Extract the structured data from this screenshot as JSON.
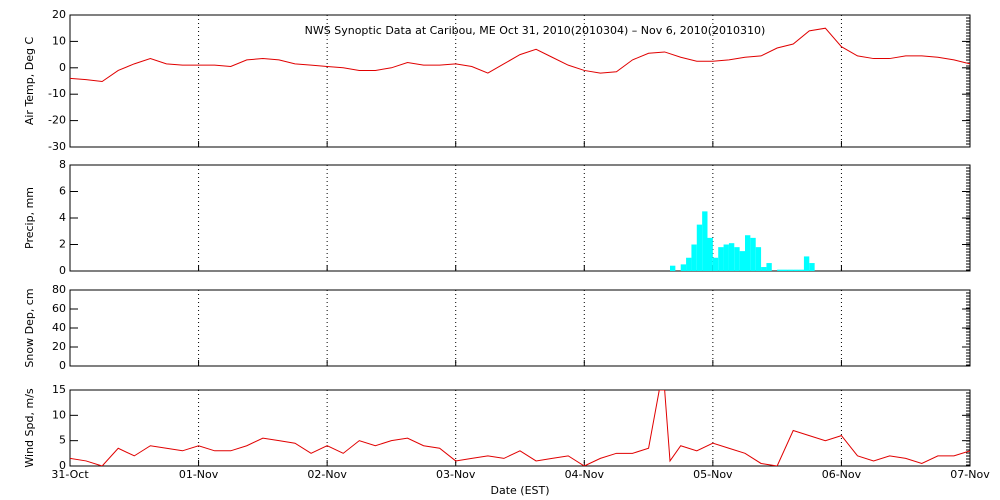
{
  "chart_data": [
    {
      "type": "line",
      "title": "NWS Synoptic Data at Caribou, ME   Oct 31, 2010(2010304) – Nov  6, 2010(2010310)",
      "ylabel": "Air Temp, Deg C",
      "color": "#e00000",
      "grid": true,
      "xlim": [
        0,
        168
      ],
      "xticks": [
        0,
        24,
        48,
        72,
        96,
        120,
        144,
        168
      ],
      "ylim": [
        -30,
        20
      ],
      "yticks": [
        -30,
        -20,
        -10,
        0,
        10,
        20
      ],
      "x": [
        0,
        3,
        6,
        9,
        12,
        15,
        18,
        21,
        24,
        27,
        30,
        33,
        36,
        39,
        42,
        45,
        48,
        51,
        54,
        57,
        60,
        63,
        66,
        69,
        72,
        75,
        78,
        81,
        84,
        87,
        90,
        93,
        96,
        99,
        102,
        105,
        108,
        111,
        114,
        117,
        120,
        123,
        126,
        129,
        132,
        135,
        138,
        141,
        144,
        147,
        150,
        153,
        156,
        159,
        162,
        165,
        168
      ],
      "values": [
        -4,
        -4.5,
        -5.2,
        -1,
        1.5,
        3.5,
        1.5,
        1,
        1,
        1,
        0.5,
        3,
        3.5,
        3,
        1.5,
        1,
        0.5,
        0,
        -1,
        -1,
        0,
        2,
        1,
        1,
        1.5,
        0.5,
        -2,
        1.5,
        5,
        7,
        4,
        1,
        -1,
        -2,
        -1.5,
        3,
        5.5,
        6,
        4,
        2.5,
        2.5,
        3,
        4,
        4.5,
        7.5,
        9,
        14,
        15,
        8,
        4.5,
        3.5,
        3.5,
        4.5,
        4.5,
        4,
        3,
        1.5
      ]
    },
    {
      "type": "bar",
      "ylabel": "Precip, mm",
      "color": "#00ffff",
      "grid": true,
      "xlim": [
        0,
        168
      ],
      "xticks": [
        0,
        24,
        48,
        72,
        96,
        120,
        144,
        168
      ],
      "ylim": [
        0,
        8
      ],
      "yticks": [
        0,
        2,
        4,
        6,
        8
      ],
      "x": [
        112,
        113,
        114,
        115,
        116,
        117,
        118,
        119,
        120,
        121,
        122,
        123,
        124,
        125,
        126,
        127,
        128,
        129,
        130,
        131,
        132,
        133,
        134,
        135,
        136,
        137,
        138
      ],
      "values": [
        0.4,
        0,
        0.5,
        1,
        2,
        3.5,
        4.5,
        2.5,
        1,
        1.8,
        2,
        2.1,
        1.8,
        1.5,
        2.7,
        2.5,
        1.8,
        0.3,
        0.6,
        0,
        0.1,
        0.1,
        0.1,
        0.1,
        0.1,
        1.1,
        0.6
      ]
    },
    {
      "type": "line",
      "ylabel": "Snow Dep, cm",
      "color": "#e00000",
      "grid": true,
      "xlim": [
        0,
        168
      ],
      "xticks": [
        0,
        24,
        48,
        72,
        96,
        120,
        144,
        168
      ],
      "ylim": [
        0,
        80
      ],
      "yticks": [
        0,
        20,
        40,
        60,
        80
      ]
    },
    {
      "type": "line",
      "ylabel": "Wind Spd, m/s",
      "xlabel": "Date (EST)",
      "color": "#e00000",
      "grid": true,
      "xlim": [
        0,
        168
      ],
      "xticks": [
        {
          "value": 0,
          "label": "31-Oct"
        },
        {
          "value": 24,
          "label": "01-Nov"
        },
        {
          "value": 48,
          "label": "02-Nov"
        },
        {
          "value": 72,
          "label": "03-Nov"
        },
        {
          "value": 96,
          "label": "04-Nov"
        },
        {
          "value": 120,
          "label": "05-Nov"
        },
        {
          "value": 144,
          "label": "06-Nov"
        },
        {
          "value": 168,
          "label": "07-Nov"
        }
      ],
      "ylim": [
        0,
        15
      ],
      "yticks": [
        0,
        5,
        10,
        15
      ],
      "x": [
        0,
        3,
        6,
        9,
        12,
        15,
        18,
        21,
        24,
        27,
        30,
        33,
        36,
        39,
        42,
        45,
        48,
        51,
        54,
        57,
        60,
        63,
        66,
        69,
        72,
        75,
        78,
        81,
        84,
        87,
        90,
        93,
        96,
        99,
        102,
        105,
        108,
        110,
        111,
        112,
        114,
        117,
        120,
        123,
        126,
        129,
        132,
        135,
        138,
        141,
        144,
        147,
        150,
        153,
        156,
        159,
        162,
        165,
        168
      ],
      "values": [
        1.5,
        1,
        0,
        3.5,
        2,
        4,
        3.5,
        3,
        4,
        3,
        3,
        4,
        5.5,
        5,
        4.5,
        2.5,
        4,
        2.5,
        5,
        4,
        5,
        5.5,
        4,
        3.5,
        1,
        1.5,
        2,
        1.5,
        3,
        1,
        1.5,
        2,
        0,
        1.5,
        2.5,
        2.5,
        3.5,
        15,
        15,
        1,
        4,
        3,
        4.5,
        3.5,
        2.5,
        0.5,
        0,
        7,
        6,
        5,
        6,
        2,
        1,
        2,
        1.5,
        0.5,
        2,
        2,
        3
      ]
    }
  ]
}
